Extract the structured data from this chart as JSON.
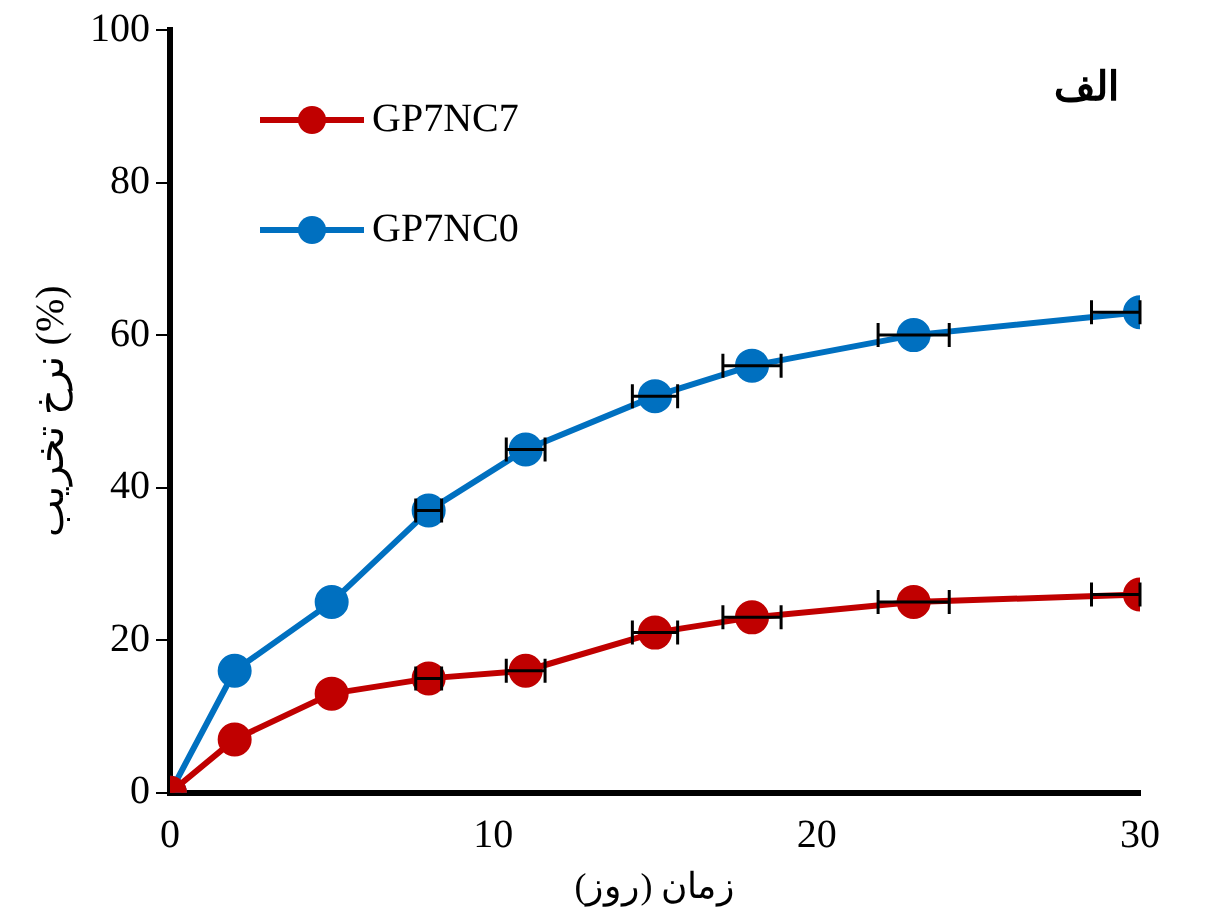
{
  "chart_data": {
    "type": "line",
    "xlabel": "زمان (روز)",
    "ylabel": "نرخ تخریب (%)",
    "annotations": [
      "الف"
    ],
    "x": [
      0,
      2,
      5,
      8,
      11,
      15,
      18,
      23,
      30
    ],
    "series": [
      {
        "name": "GP7NC7",
        "color": "#c00000",
        "values": [
          0,
          7,
          13,
          15,
          16,
          21,
          23,
          25,
          26
        ],
        "xerrors": [
          null,
          null,
          null,
          0.4,
          0.6,
          0.7,
          0.9,
          1.1,
          [
            28.5,
            30
          ]
        ]
      },
      {
        "name": "GP7NC0",
        "color": "#0070c0",
        "values": [
          0,
          16,
          25,
          37,
          45,
          52,
          56,
          60,
          63
        ],
        "xerrors": [
          null,
          null,
          null,
          0.4,
          0.6,
          0.7,
          0.9,
          1.1,
          [
            28.5,
            30
          ]
        ]
      }
    ],
    "xlim": [
      0,
      30
    ],
    "xticks": [
      0,
      10,
      20,
      30
    ],
    "ylim": [
      0,
      100
    ],
    "yticks": [
      0,
      20,
      40,
      60,
      80,
      100
    ],
    "grid": false,
    "legend": "top left",
    "marker": "circle",
    "line_style": "solid"
  }
}
